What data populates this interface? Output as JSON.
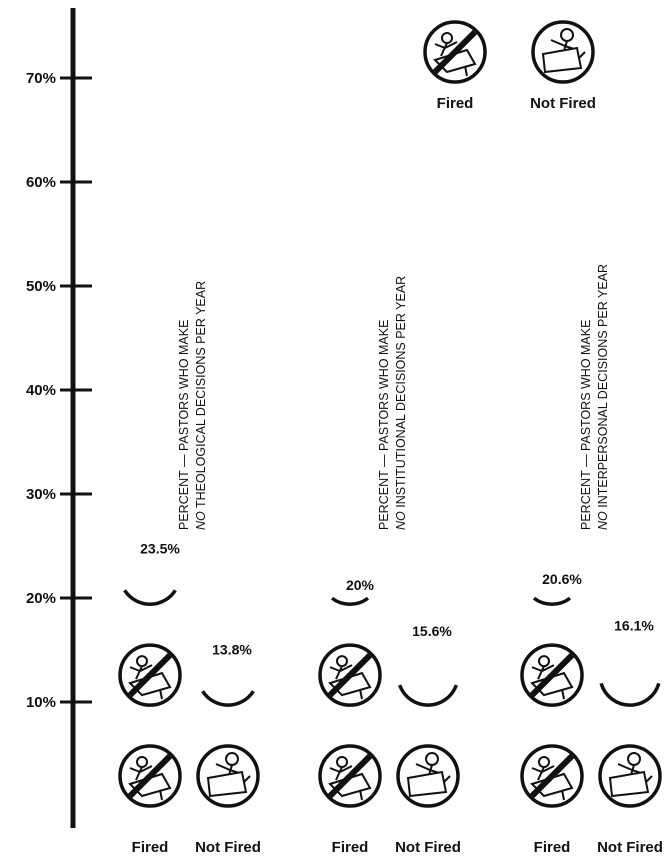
{
  "chart_data": {
    "type": "bar",
    "style": "pictogram",
    "ylim": [
      0,
      75
    ],
    "yticks": [
      "10%",
      "20%",
      "30%",
      "40%",
      "50%",
      "60%",
      "70%"
    ],
    "grid": false,
    "groups": [
      {
        "label_line1": "PERCENT — PASTORS WHO MAKE",
        "label_line2_emph": "NO",
        "label_line2_rest": " THEOLOGICAL DECISIONS PER YEAR",
        "bars": [
          {
            "category": "Fired",
            "value": 23.5,
            "value_label": "23.5%",
            "icon": "fired-icon"
          },
          {
            "category": "Not Fired",
            "value": 13.8,
            "value_label": "13.8%",
            "icon": "not-fired-icon"
          }
        ]
      },
      {
        "label_line1": "PERCENT — PASTORS WHO MAKE",
        "label_line2_emph": "NO",
        "label_line2_rest": " INSTITUTIONAL DECISIONS PER YEAR",
        "bars": [
          {
            "category": "Fired",
            "value": 20,
            "value_label": "20%",
            "icon": "fired-icon"
          },
          {
            "category": "Not Fired",
            "value": 15.6,
            "value_label": "15.6%",
            "icon": "not-fired-icon"
          }
        ]
      },
      {
        "label_line1": "PERCENT — PASTORS WHO MAKE",
        "label_line2_emph": "NO",
        "label_line2_rest": " INTERPERSONAL DECISIONS PER YEAR",
        "bars": [
          {
            "category": "Fired",
            "value": 20.6,
            "value_label": "20.6%",
            "icon": "fired-icon"
          },
          {
            "category": "Not Fired",
            "value": 16.1,
            "value_label": "16.1%",
            "icon": "not-fired-icon"
          }
        ]
      }
    ],
    "legend": {
      "placement": "top-right",
      "items": [
        {
          "label": "Fired",
          "icon": "fired-icon"
        },
        {
          "label": "Not Fired",
          "icon": "not-fired-icon"
        }
      ]
    }
  }
}
